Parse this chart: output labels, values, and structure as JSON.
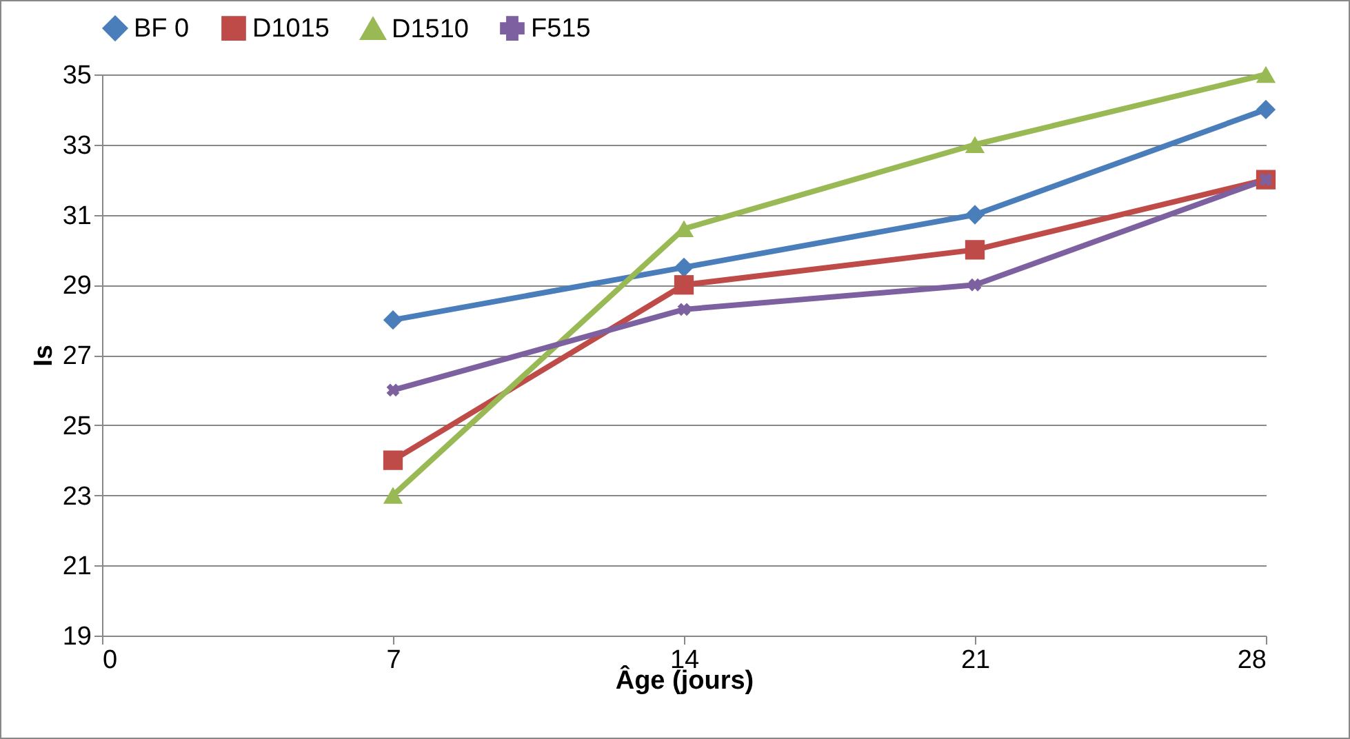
{
  "chart_data": {
    "type": "line",
    "xlabel": "Âge (jours)",
    "ylabel": "Is",
    "x": [
      7,
      14,
      21,
      28
    ],
    "series": [
      {
        "name": "BF 0",
        "color": "#4a7ebb",
        "marker": "diamond",
        "values": [
          28,
          29.5,
          31,
          34
        ]
      },
      {
        "name": "D1015",
        "color": "#be4b48",
        "marker": "square",
        "values": [
          24,
          29,
          30,
          32
        ]
      },
      {
        "name": "D1510",
        "color": "#98b954",
        "marker": "triangle",
        "values": [
          23,
          30.6,
          33,
          35
        ]
      },
      {
        "name": "F515",
        "color": "#7d60a0",
        "marker": "cross",
        "values": [
          26,
          28.3,
          29,
          32
        ]
      }
    ],
    "xlim": [
      0,
      28
    ],
    "xticks": [
      0,
      7,
      14,
      21,
      28
    ],
    "ylim": [
      19,
      35
    ],
    "yticks": [
      19,
      21,
      23,
      25,
      27,
      29,
      31,
      33,
      35
    ],
    "grid": "y",
    "legend": "top",
    "line_style": "solid"
  }
}
